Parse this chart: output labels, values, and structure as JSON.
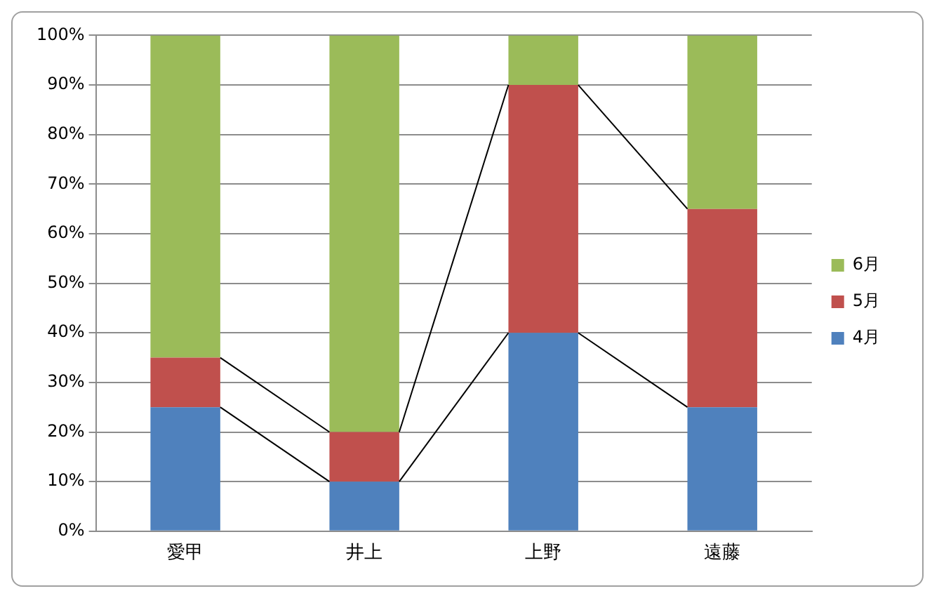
{
  "chart_data": {
    "type": "bar",
    "stacked": true,
    "categories": [
      "愛甲",
      "井上",
      "上野",
      "遠藤"
    ],
    "series": [
      {
        "name": "4月",
        "color": "#4f81bd",
        "values": [
          25,
          10,
          40,
          25
        ]
      },
      {
        "name": "5月",
        "color": "#c0504d",
        "values": [
          10,
          10,
          50,
          40
        ]
      },
      {
        "name": "6月",
        "color": "#9bbb59",
        "values": [
          65,
          80,
          10,
          35
        ]
      }
    ],
    "ylim": [
      0,
      100
    ],
    "yticks": [
      {
        "value": 0,
        "label": "0%"
      },
      {
        "value": 10,
        "label": "10%"
      },
      {
        "value": 20,
        "label": "20%"
      },
      {
        "value": 30,
        "label": "30%"
      },
      {
        "value": 40,
        "label": "40%"
      },
      {
        "value": 50,
        "label": "50%"
      },
      {
        "value": 60,
        "label": "60%"
      },
      {
        "value": 70,
        "label": "70%"
      },
      {
        "value": 80,
        "label": "80%"
      },
      {
        "value": 90,
        "label": "90%"
      },
      {
        "value": 100,
        "label": "100%"
      }
    ],
    "grid": "y",
    "legend": "right"
  }
}
